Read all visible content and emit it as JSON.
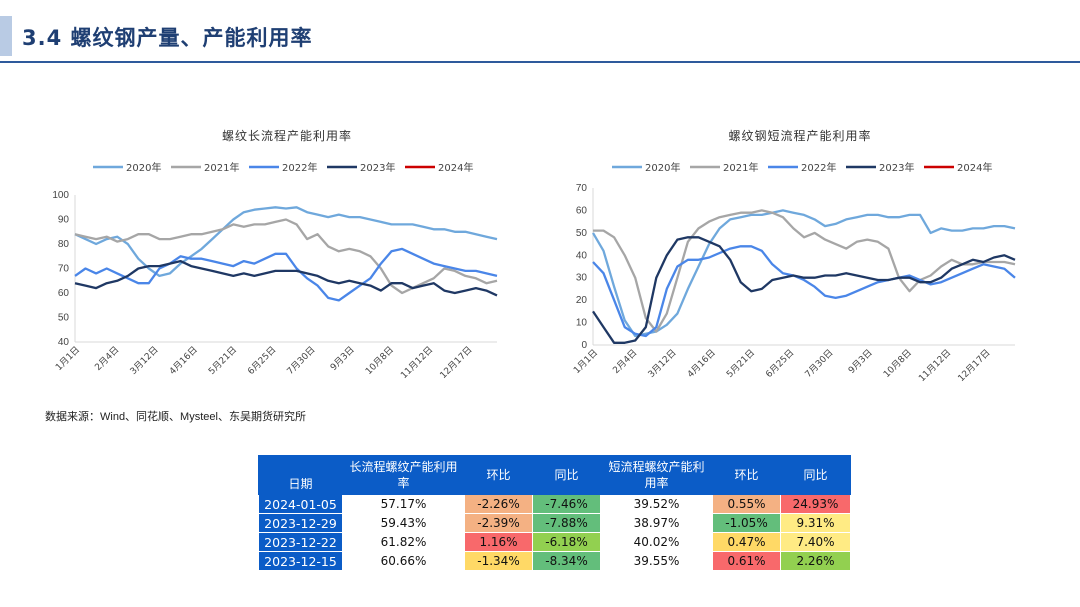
{
  "page": {
    "title": "3.4 螺纹钢产量、产能利用率",
    "source": "数据来源：Wind、同花顺、Mysteel、东吴期货研究所"
  },
  "colors": {
    "2020年": "#6fa8dc",
    "2021年": "#a6a6a6",
    "2022年": "#4a86e8",
    "2023年": "#1f3864",
    "2024年": "#cc0000",
    "title": "#1f3f73",
    "rule": "#2e5a9c",
    "header": "#0b5cc7"
  },
  "chart_data": [
    {
      "type": "line",
      "title": "螺纹长流程产能利用率",
      "x_ticks": [
        "1月1日",
        "2月4日",
        "3月12日",
        "4月16日",
        "5月21日",
        "6月25日",
        "7月30日",
        "9月3日",
        "10月8日",
        "11月12日",
        "12月17日"
      ],
      "ylim": [
        40,
        100
      ],
      "y_ticks": [
        40,
        50,
        60,
        70,
        80,
        90,
        100
      ],
      "grid": false,
      "legend": "top",
      "series": [
        {
          "name": "2020年",
          "color": "#6fa8dc",
          "values": [
            84,
            82,
            80,
            82,
            83,
            80,
            74,
            70,
            67,
            68,
            72,
            75,
            78,
            82,
            86,
            90,
            93,
            94,
            94.5,
            95,
            94.5,
            95,
            93,
            92,
            91,
            92,
            91,
            91,
            90,
            89,
            88,
            88,
            88,
            87,
            86,
            86,
            85,
            85,
            84,
            83,
            82
          ]
        },
        {
          "name": "2021年",
          "color": "#a6a6a6",
          "values": [
            84,
            83,
            82,
            83,
            81,
            82,
            84,
            84,
            82,
            82,
            83,
            84,
            84,
            85,
            86,
            88,
            87,
            88,
            88,
            89,
            90,
            88,
            82,
            84,
            79,
            77,
            78,
            77,
            75,
            70,
            63,
            60,
            62,
            64,
            66,
            70,
            69,
            67,
            66,
            64,
            65
          ]
        },
        {
          "name": "2022年",
          "color": "#4a86e8",
          "values": [
            67,
            70,
            68,
            70,
            68,
            66,
            64,
            64,
            70,
            72,
            75,
            74,
            74,
            73,
            72,
            71,
            73,
            72,
            74,
            76,
            76,
            70,
            66,
            63,
            58,
            57,
            60,
            63,
            66,
            72,
            77,
            78,
            76,
            74,
            72,
            71,
            70,
            69,
            69,
            68,
            67
          ]
        },
        {
          "name": "2023年",
          "color": "#1f3864",
          "values": [
            64,
            63,
            62,
            64,
            65,
            67,
            70,
            71,
            71,
            72,
            73,
            71,
            70,
            69,
            68,
            67,
            68,
            67,
            68,
            69,
            69,
            69,
            68,
            67,
            65,
            64,
            65,
            64,
            63,
            61,
            64,
            64,
            62,
            63,
            64,
            61,
            60,
            61,
            62,
            61,
            59
          ]
        },
        {
          "name": "2024年",
          "color": "#cc0000",
          "values": []
        }
      ]
    },
    {
      "type": "line",
      "title": "螺纹钢短流程产能利用率",
      "x_ticks": [
        "1月1日",
        "2月4日",
        "3月12日",
        "4月16日",
        "5月21日",
        "6月25日",
        "7月30日",
        "9月3日",
        "10月8日",
        "11月12日",
        "12月17日"
      ],
      "ylim": [
        0,
        70
      ],
      "y_ticks": [
        0,
        10,
        20,
        30,
        40,
        50,
        60,
        70
      ],
      "grid": false,
      "legend": "top",
      "series": [
        {
          "name": "2020年",
          "color": "#6fa8dc",
          "values": [
            50,
            42,
            26,
            11,
            4,
            5,
            6,
            9,
            14,
            25,
            35,
            45,
            52,
            56,
            57,
            58,
            58,
            59,
            60,
            59,
            58,
            56,
            53,
            54,
            56,
            57,
            58,
            58,
            57,
            57,
            58,
            58,
            50,
            52,
            51,
            51,
            52,
            52,
            53,
            53,
            52
          ]
        },
        {
          "name": "2021年",
          "color": "#a6a6a6",
          "values": [
            51,
            51,
            48,
            40,
            30,
            12,
            6,
            14,
            30,
            46,
            52,
            55,
            57,
            58,
            59,
            59,
            60,
            59,
            57,
            52,
            48,
            50,
            47,
            45,
            43,
            46,
            47,
            46,
            43,
            30,
            24,
            29,
            31,
            35,
            38,
            36,
            36,
            37,
            37,
            37,
            36
          ]
        },
        {
          "name": "2022年",
          "color": "#4a86e8",
          "values": [
            37,
            32,
            20,
            8,
            5,
            4,
            8,
            25,
            35,
            38,
            38,
            39,
            41,
            43,
            44,
            44,
            42,
            36,
            32,
            31,
            29,
            26,
            22,
            21,
            22,
            24,
            26,
            28,
            29,
            30,
            31,
            29,
            27,
            28,
            30,
            32,
            34,
            36,
            35,
            34,
            30
          ]
        },
        {
          "name": "2023年",
          "color": "#1f3864",
          "values": [
            15,
            8,
            1,
            1,
            2,
            8,
            30,
            40,
            47,
            48,
            48,
            46,
            44,
            38,
            28,
            24,
            25,
            29,
            30,
            31,
            30,
            30,
            31,
            31,
            32,
            31,
            30,
            29,
            29,
            30,
            30,
            28,
            28,
            30,
            34,
            36,
            38,
            37,
            39,
            40,
            38
          ]
        },
        {
          "name": "2024年",
          "color": "#cc0000",
          "values": []
        }
      ]
    }
  ],
  "table": {
    "headers": [
      "日期",
      "长流程螺纹产能利用率",
      "环比",
      "同比",
      "短流程螺纹产能利用率",
      "环比",
      "同比"
    ],
    "rows": [
      {
        "date": "2024-01-05",
        "long": "57.17%",
        "long_mom": "-2.26%",
        "long_yoy": "-7.46%",
        "short": "39.52%",
        "short_mom": "0.55%",
        "short_yoy": "24.93%",
        "c": [
          "#f4b183",
          "#63be7b",
          "#f4b183",
          "#f8696b"
        ]
      },
      {
        "date": "2023-12-29",
        "long": "59.43%",
        "long_mom": "-2.39%",
        "long_yoy": "-7.88%",
        "short": "38.97%",
        "short_mom": "-1.05%",
        "short_yoy": "9.31%",
        "c": [
          "#f4b183",
          "#63be7b",
          "#63be7b",
          "#ffeb84"
        ]
      },
      {
        "date": "2023-12-22",
        "long": "61.82%",
        "long_mom": "1.16%",
        "long_yoy": "-6.18%",
        "short": "40.02%",
        "short_mom": "0.47%",
        "short_yoy": "7.40%",
        "c": [
          "#f8696b",
          "#92d050",
          "#ffd966",
          "#ffeb84"
        ]
      },
      {
        "date": "2023-12-15",
        "long": "60.66%",
        "long_mom": "-1.34%",
        "long_yoy": "-8.34%",
        "short": "39.55%",
        "short_mom": "0.61%",
        "short_yoy": "2.26%",
        "c": [
          "#ffd966",
          "#63be7b",
          "#f8696b",
          "#92d050"
        ]
      }
    ]
  }
}
